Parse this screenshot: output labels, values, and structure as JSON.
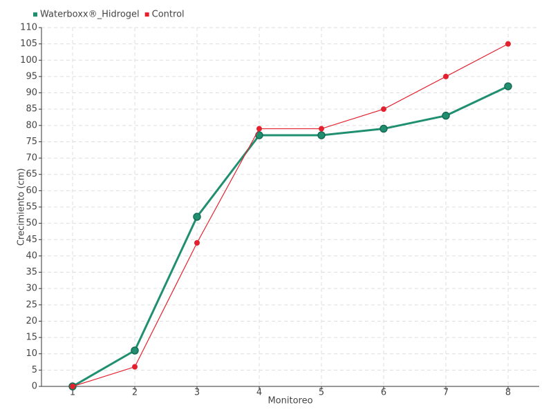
{
  "chart_data": {
    "type": "line",
    "x": [
      1,
      2,
      3,
      4,
      5,
      6,
      7,
      8
    ],
    "xlim": [
      0.5,
      8.5
    ],
    "xticks": [
      1,
      2,
      3,
      4,
      5,
      6,
      7,
      8
    ],
    "ylim": [
      0,
      110
    ],
    "yticks": [
      0,
      5,
      10,
      15,
      20,
      25,
      30,
      35,
      40,
      45,
      50,
      55,
      60,
      65,
      70,
      75,
      80,
      85,
      90,
      95,
      100,
      105,
      110
    ],
    "xlabel": "Monitoreo",
    "ylabel": "Crecimiento (cm)",
    "grid": true,
    "legend": "top-left",
    "series": [
      {
        "name": "Waterboxx®_Hidrogel",
        "color": "#1f8f70",
        "values": [
          0,
          11,
          52,
          77,
          77,
          79,
          83,
          92
        ]
      },
      {
        "name": "Control",
        "color": "#e5202e",
        "values": [
          0,
          6,
          44,
          79,
          79,
          85,
          95,
          105
        ]
      }
    ]
  }
}
